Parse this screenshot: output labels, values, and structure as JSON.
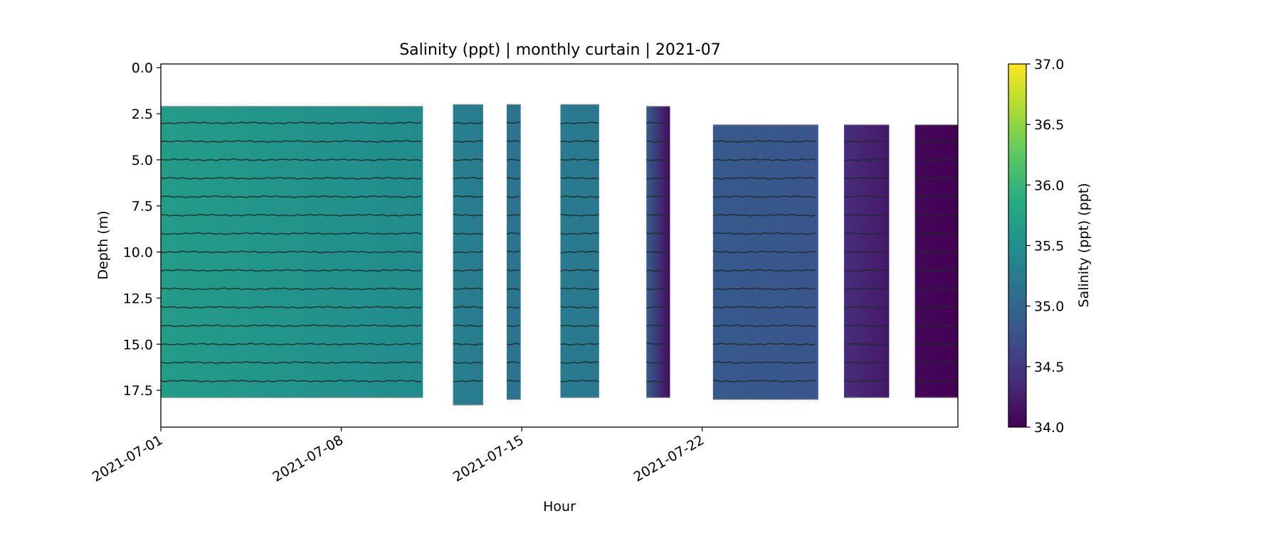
{
  "chart_data": {
    "type": "heatmap",
    "title": "Salinity (ppt) | monthly curtain | 2021-07",
    "xlabel": "Hour",
    "ylabel": "Depth (m)",
    "colorbar_label": "Salinity (ppt) (ppt)",
    "colormap": "viridis",
    "xlim": [
      "2021-07-01",
      "2021-07-31T22:00"
    ],
    "ylim": [
      19.5,
      -0.2
    ],
    "y_inverted": true,
    "clim": [
      34.0,
      37.0
    ],
    "x_ticks": [
      "2021-07-01",
      "2021-07-08",
      "2021-07-15",
      "2021-07-22"
    ],
    "y_ticks": [
      "0.0",
      "2.5",
      "5.0",
      "7.5",
      "10.0",
      "12.5",
      "15.0",
      "17.5"
    ],
    "colorbar_ticks": [
      "34.0",
      "34.5",
      "35.0",
      "35.5",
      "36.0",
      "36.5",
      "37.0"
    ],
    "sensor_depths_m": [
      3,
      4,
      5,
      6,
      7,
      8,
      9,
      10,
      11,
      12,
      13,
      14,
      15,
      16,
      17
    ],
    "segments": [
      {
        "start": "2021-07-01T00:00",
        "end": "2021-07-11T04:00",
        "top_depth": 2.1,
        "bottom_depth": 17.9,
        "salinity_start": 35.65,
        "salinity_end": 35.45
      },
      {
        "start": "2021-07-12T08:00",
        "end": "2021-07-13T12:00",
        "top_depth": 2.0,
        "bottom_depth": 18.3,
        "salinity_start": 35.3,
        "salinity_end": 35.25
      },
      {
        "start": "2021-07-14T10:00",
        "end": "2021-07-14T23:00",
        "top_depth": 2.0,
        "bottom_depth": 18.0,
        "salinity_start": 35.15,
        "salinity_end": 35.15
      },
      {
        "start": "2021-07-16T12:00",
        "end": "2021-07-18T00:00",
        "top_depth": 2.0,
        "bottom_depth": 17.9,
        "salinity_start": 35.25,
        "salinity_end": 35.2
      },
      {
        "start": "2021-07-19T20:00",
        "end": "2021-07-20T18:00",
        "top_depth": 2.1,
        "bottom_depth": 17.9,
        "salinity_start": 34.9,
        "salinity_end": 34.1
      },
      {
        "start": "2021-07-22T10:00",
        "end": "2021-07-26T12:00",
        "top_depth": 3.1,
        "bottom_depth": 18.0,
        "salinity_start": 34.85,
        "salinity_end": 34.8
      },
      {
        "start": "2021-07-27T12:00",
        "end": "2021-07-29T06:00",
        "top_depth": 3.1,
        "bottom_depth": 17.9,
        "salinity_start": 34.4,
        "salinity_end": 34.2
      },
      {
        "start": "2021-07-30T06:00",
        "end": "2021-07-31T22:00",
        "top_depth": 3.1,
        "bottom_depth": 17.9,
        "salinity_start": 34.05,
        "salinity_end": 34.0
      }
    ]
  }
}
